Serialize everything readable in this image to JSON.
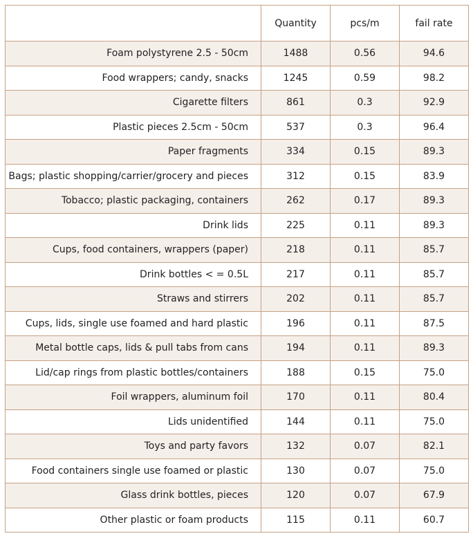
{
  "chart_data": {
    "type": "table",
    "columns": [
      "",
      "Quantity",
      "pcs/m",
      "fail rate"
    ],
    "rows": [
      [
        "Foam polystyrene  2.5 - 50cm",
        "1488",
        "0.56",
        "94.6"
      ],
      [
        "Food wrappers; candy, snacks",
        "1245",
        "0.59",
        "98.2"
      ],
      [
        "Cigarette filters",
        "861",
        "0.3",
        "92.9"
      ],
      [
        "Plastic pieces 2.5cm - 50cm",
        "537",
        "0.3",
        "96.4"
      ],
      [
        "Paper fragments",
        "334",
        "0.15",
        "89.3"
      ],
      [
        "Bags; plastic shopping/carrier/grocery and pieces",
        "312",
        "0.15",
        "83.9"
      ],
      [
        "Tobacco; plastic packaging, containers",
        "262",
        "0.17",
        "89.3"
      ],
      [
        "Drink lids",
        "225",
        "0.11",
        "89.3"
      ],
      [
        "Cups, food containers, wrappers (paper)",
        "218",
        "0.11",
        "85.7"
      ],
      [
        "Drink bottles < = 0.5L",
        "217",
        "0.11",
        "85.7"
      ],
      [
        "Straws and stirrers",
        "202",
        "0.11",
        "85.7"
      ],
      [
        "Cups, lids, single use foamed and hard plastic",
        "196",
        "0.11",
        "87.5"
      ],
      [
        "Metal bottle caps, lids & pull tabs from cans",
        "194",
        "0.11",
        "89.3"
      ],
      [
        "Lid/cap rings from plastic bottles/containers",
        "188",
        "0.15",
        "75.0"
      ],
      [
        "Foil wrappers, aluminum foil",
        "170",
        "0.11",
        "80.4"
      ],
      [
        "Lids unidentified",
        "144",
        "0.11",
        "75.0"
      ],
      [
        "Toys and party favors",
        "132",
        "0.07",
        "82.1"
      ],
      [
        "Food containers single use foamed or plastic",
        "130",
        "0.07",
        "75.0"
      ],
      [
        "Glass drink bottles, pieces",
        "120",
        "0.07",
        "67.9"
      ],
      [
        "Other plastic or foam products",
        "115",
        "0.11",
        "60.7"
      ]
    ],
    "colors": {
      "border": "#c4a184",
      "stripe": "#f5efea",
      "background": "#ffffff",
      "text": "#222222"
    }
  }
}
